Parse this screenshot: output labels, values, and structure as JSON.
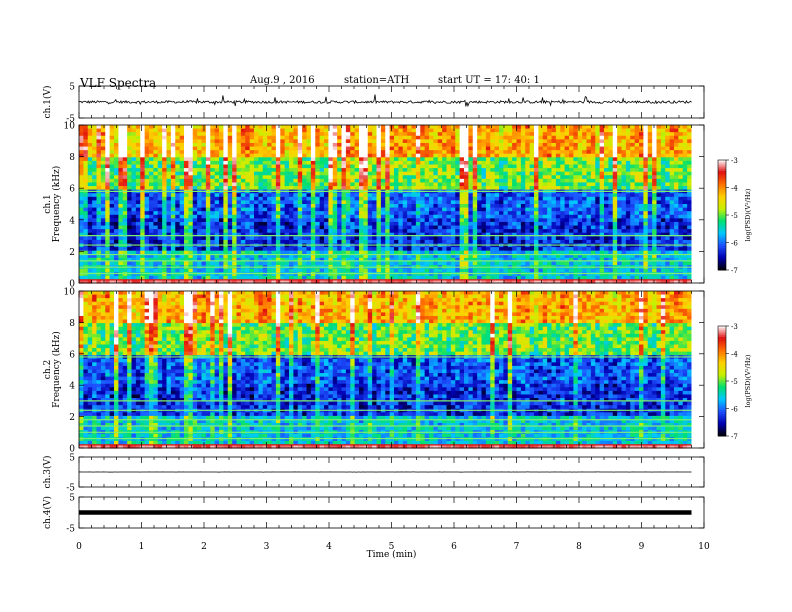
{
  "header": {
    "title": "VLF  Spectra",
    "date": "Aug.9  , 2016",
    "station": "station=ATH",
    "start": "start  UT  =   17: 40: 1"
  },
  "chart_data": {
    "type": "heatmap",
    "x": {
      "label": "Time  (min)",
      "range": [
        0,
        10
      ],
      "ticks": [
        "0",
        "1",
        "2",
        "3",
        "4",
        "5",
        "6",
        "7",
        "8",
        "9",
        "10"
      ],
      "data_end": 9.8
    },
    "panels": [
      {
        "id": "ch1_wave",
        "kind": "waveform",
        "ylabel": "ch.1(V)",
        "yrange": [
          -5,
          5
        ],
        "yticks": [
          "5",
          "-5"
        ],
        "baseline": 0,
        "noise": 0.4,
        "spikes": 1.8
      },
      {
        "id": "ch1_spec",
        "kind": "spectrogram",
        "ylabel_top": "ch.1",
        "ylabel": "Frequency  (kHz)",
        "yrange": [
          0,
          10
        ],
        "yticks": [
          "0",
          "2",
          "4",
          "6",
          "8",
          "10"
        ]
      },
      {
        "id": "ch2_spec",
        "kind": "spectrogram",
        "ylabel_top": "ch.2",
        "ylabel": "Frequency  (kHz)",
        "yrange": [
          0,
          10
        ],
        "yticks": [
          "0",
          "2",
          "4",
          "6",
          "8",
          "10"
        ]
      },
      {
        "id": "ch3_wave",
        "kind": "waveform",
        "ylabel": "ch.3(V)",
        "yrange": [
          -5,
          5
        ],
        "yticks": [
          "5",
          "-5"
        ],
        "baseline": 0,
        "noise": 0.02,
        "spikes": 0
      },
      {
        "id": "ch4_wave",
        "kind": "waveform",
        "ylabel": "ch.4(V)",
        "yrange": [
          -5,
          5
        ],
        "yticks": [
          "5",
          "-5"
        ],
        "baseline": 0,
        "noise": 0,
        "spikes": 0,
        "thick": true
      }
    ],
    "colorbar": {
      "label": "log(PSD)(V²/Hz)",
      "range": [
        -7,
        -3
      ],
      "ticks": [
        "-3",
        "-4",
        "-5",
        "-6",
        "-7"
      ],
      "colors": [
        "#000000",
        "#0000b0",
        "#1e50ff",
        "#00c8ff",
        "#00e070",
        "#c8f000",
        "#ffd000",
        "#ff7000",
        "#e01010",
        "#ffffff"
      ]
    },
    "spectral_lines_khz": [
      0.2,
      0.6,
      1.0,
      1.4,
      1.8,
      2.4,
      3.0,
      5.8
    ],
    "band_levels": [
      {
        "f": [
          0,
          2
        ],
        "level": -5.6
      },
      {
        "f": [
          2,
          4
        ],
        "level": -6.3
      },
      {
        "f": [
          4,
          6
        ],
        "level": -6.1
      },
      {
        "f": [
          6,
          8
        ],
        "level": -5.0
      },
      {
        "f": [
          8,
          10
        ],
        "level": -4.2
      }
    ]
  }
}
